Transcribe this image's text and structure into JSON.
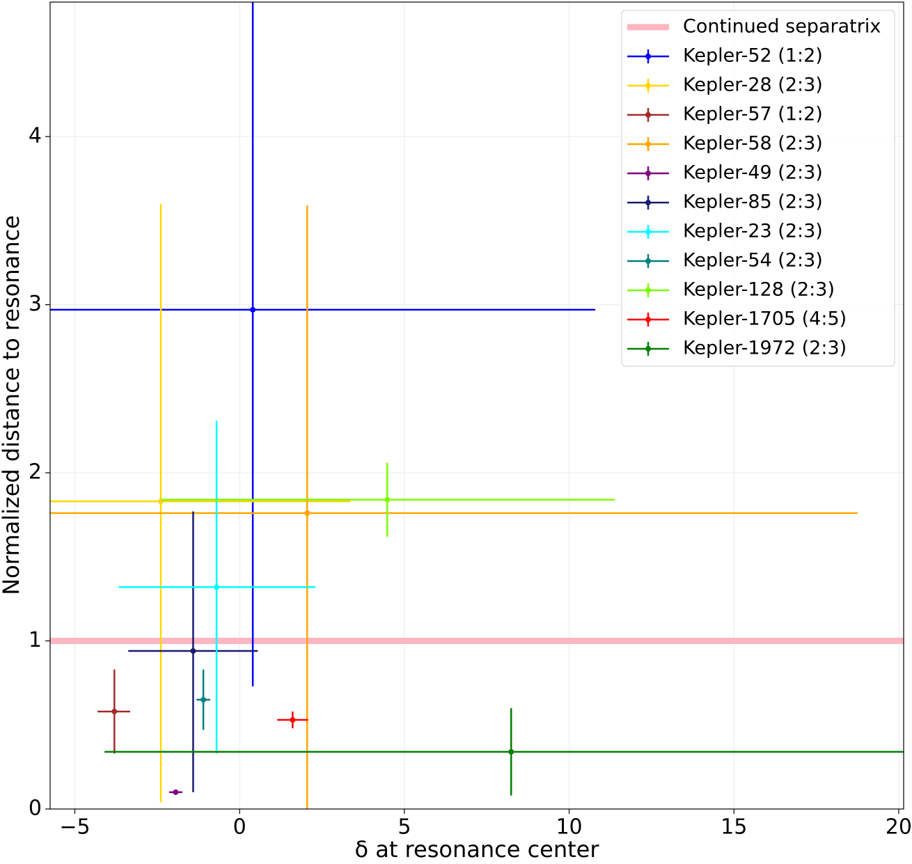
{
  "chart_data": {
    "type": "errorbar",
    "xlabel": "δ at resonance center",
    "ylabel": "Normalized distance to resonance",
    "xlim": [
      -5.75,
      20.15
    ],
    "ylim": [
      0,
      4.8
    ],
    "xticks": [
      {
        "value": -5,
        "label": "−5"
      },
      0,
      5,
      10,
      15,
      20
    ],
    "yticks": [
      0,
      1,
      2,
      3,
      4
    ],
    "grid": true,
    "legend": "upper right",
    "separatrix": {
      "name": "Continued separatrix",
      "value": 1,
      "color": "#ffb6c1"
    },
    "series": [
      {
        "name": "Kepler-52 (1:2)",
        "color": "#0000ff",
        "x": 0.4,
        "y": 2.97,
        "xerr": [
          6.3,
          10.39
        ],
        "yerr": [
          2.24,
          2.24
        ]
      },
      {
        "name": "Kepler-28 (2:3)",
        "color": "#ffd700",
        "x": -2.39,
        "y": 1.83,
        "xerr": [
          3.5,
          5.75
        ],
        "yerr": [
          1.79,
          1.77
        ]
      },
      {
        "name": "Kepler-57 (1:2)",
        "color": "#a52a2a",
        "x": -3.8,
        "y": 0.58,
        "xerr": [
          0.51,
          0.48
        ],
        "yerr": [
          0.25,
          0.25
        ]
      },
      {
        "name": "Kepler-58 (2:3)",
        "color": "#ffa500",
        "x": 2.05,
        "y": 1.76,
        "xerr": [
          8.0,
          16.7
        ],
        "yerr": [
          1.76,
          1.83
        ]
      },
      {
        "name": "Kepler-49 (2:3)",
        "color": "#800080",
        "x": -1.94,
        "y": 0.1,
        "xerr": [
          0.2,
          0.2
        ],
        "yerr": [
          0.01,
          0.01
        ]
      },
      {
        "name": "Kepler-85 (2:3)",
        "color": "#191970",
        "x": -1.41,
        "y": 0.94,
        "xerr": [
          1.97,
          1.96
        ],
        "yerr": [
          0.84,
          0.83
        ]
      },
      {
        "name": "Kepler-23 (2:3)",
        "color": "#00ffff",
        "x": -0.7,
        "y": 1.32,
        "xerr": [
          2.97,
          3.0
        ],
        "yerr": [
          0.99,
          0.99
        ]
      },
      {
        "name": "Kepler-54 (2:3)",
        "color": "#008080",
        "x": -1.1,
        "y": 0.65,
        "xerr": [
          0.21,
          0.21
        ],
        "yerr": [
          0.18,
          0.18
        ]
      },
      {
        "name": "Kepler-128 (2:3)",
        "color": "#7cfc00",
        "x": 4.48,
        "y": 1.84,
        "xerr": [
          6.85,
          6.9
        ],
        "yerr": [
          0.22,
          0.22
        ]
      },
      {
        "name": "Kepler-1705 (4:5)",
        "color": "#ff0000",
        "x": 1.61,
        "y": 0.53,
        "xerr": [
          0.47,
          0.47
        ],
        "yerr": [
          0.05,
          0.05
        ]
      },
      {
        "name": "Kepler-1972 (2:3)",
        "color": "#008000",
        "x": 8.24,
        "y": 0.34,
        "xerr": [
          12.34,
          12.34
        ],
        "yerr": [
          0.26,
          0.26
        ]
      }
    ]
  }
}
